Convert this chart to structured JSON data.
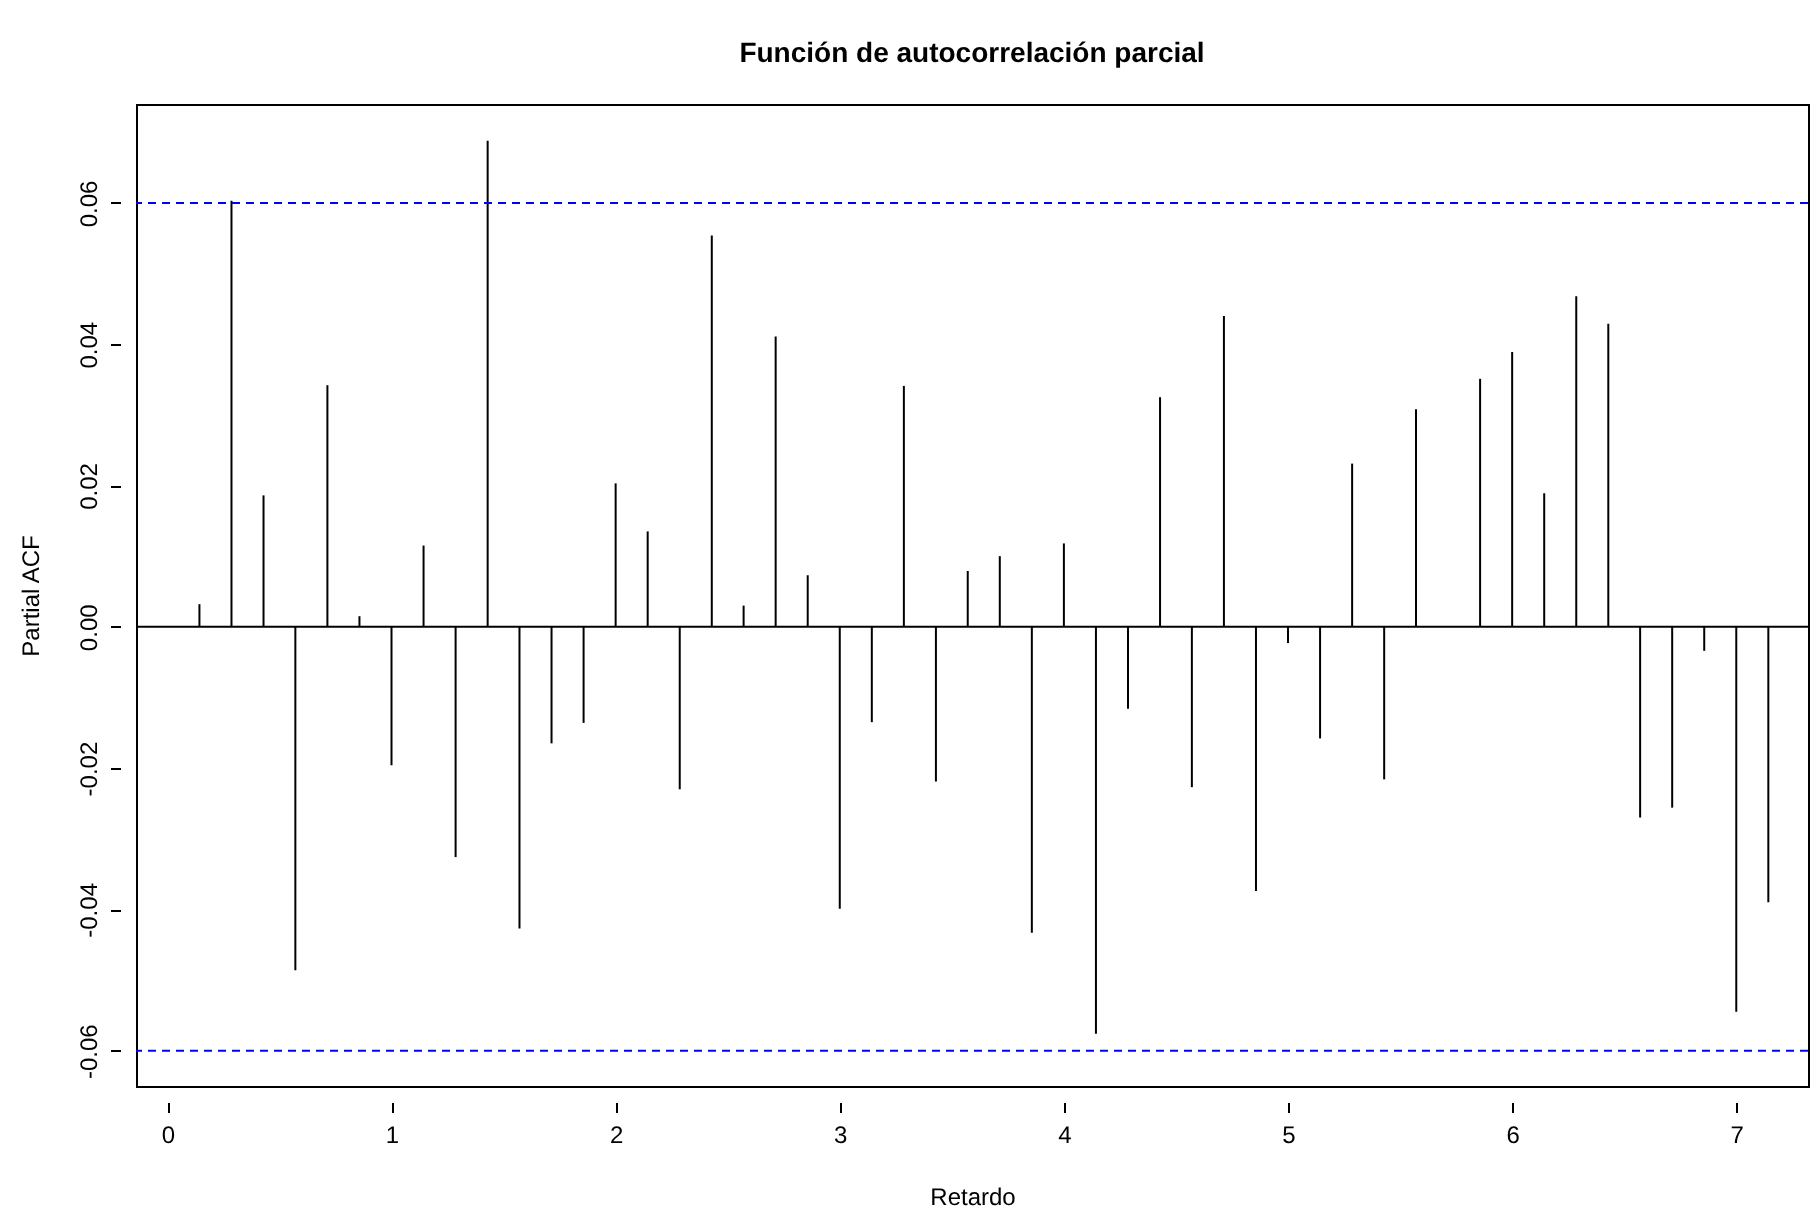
{
  "chart_data": {
    "type": "bar",
    "title": "Función de autocorrelación parcial",
    "xlabel": "Retardo",
    "ylabel": "Partial ACF",
    "x": [
      0.143,
      0.286,
      0.429,
      0.571,
      0.714,
      0.857,
      1.0,
      1.143,
      1.286,
      1.429,
      1.571,
      1.714,
      1.857,
      2.0,
      2.143,
      2.286,
      2.429,
      2.571,
      2.714,
      2.857,
      3.0,
      3.143,
      3.286,
      3.429,
      3.571,
      3.714,
      3.857,
      4.0,
      4.143,
      4.286,
      4.429,
      4.571,
      4.714,
      4.857,
      5.0,
      5.143,
      5.286,
      5.429,
      5.571,
      5.714,
      5.857,
      6.0,
      6.143,
      6.286,
      6.429,
      6.571,
      6.714,
      6.857,
      7.0,
      7.143
    ],
    "series": [
      {
        "color": "#000000",
        "values": [
          0.0032,
          0.0603,
          0.0186,
          -0.0486,
          0.0342,
          0.0015,
          -0.0196,
          0.0115,
          -0.0326,
          0.0688,
          -0.0427,
          -0.0165,
          -0.0136,
          0.0203,
          0.0135,
          -0.023,
          0.0554,
          0.003,
          0.0411,
          0.0073,
          -0.0399,
          -0.0135,
          0.0341,
          -0.0219,
          0.0079,
          0.01,
          -0.0433,
          0.0118,
          -0.0576,
          -0.0116,
          0.0325,
          -0.0227,
          0.044,
          -0.0374,
          -0.0023,
          -0.0158,
          0.0231,
          -0.0216,
          0.0308,
          0.0,
          0.0351,
          0.0389,
          0.0189,
          0.0468,
          0.0429,
          -0.027,
          -0.0256,
          -0.0034,
          -0.0545,
          -0.039
        ]
      }
    ],
    "xlim": [
      -0.14,
      7.32
    ],
    "xticks": [
      0,
      1,
      2,
      3,
      4,
      5,
      6,
      7
    ],
    "ylim": [
      -0.065,
      0.074
    ],
    "yticks": [
      -0.06,
      -0.04,
      -0.02,
      {
        "value": 0,
        "label": "0.00"
      },
      0.02,
      0.04,
      0.06
    ],
    "ref_lines": [
      {
        "axis": "y",
        "value": 0.06,
        "color": "#0000ff",
        "line_style": "dashed"
      },
      {
        "axis": "y",
        "value": -0.06,
        "color": "#0000ff",
        "line_style": "dashed"
      },
      {
        "axis": "y",
        "value": 0,
        "color": "#000000",
        "line_style": "solid"
      }
    ],
    "grid": false
  }
}
